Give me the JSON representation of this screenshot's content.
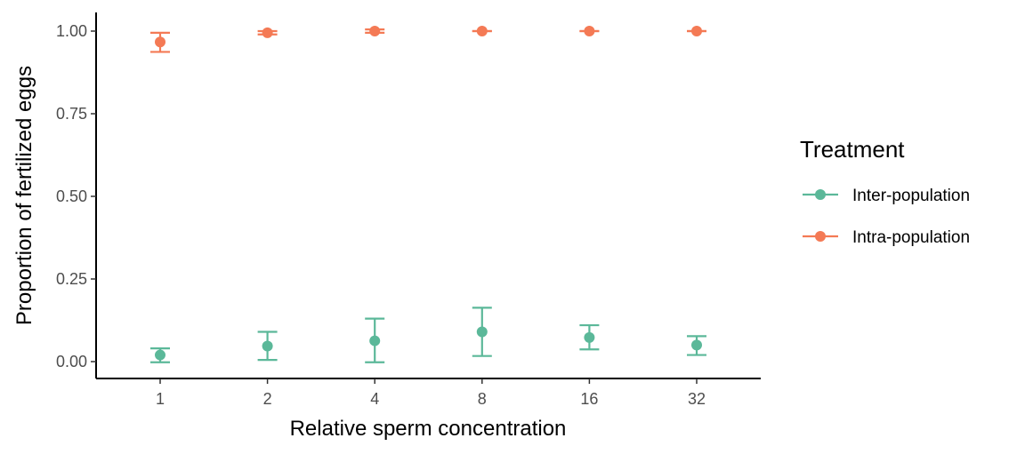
{
  "chart_data": {
    "type": "scatter",
    "xlabel": "Relative sperm concentration",
    "ylabel": "Proportion of fertilized eggs",
    "categories": [
      "1",
      "2",
      "4",
      "8",
      "16",
      "32"
    ],
    "yticks": [
      "0.00",
      "0.25",
      "0.50",
      "0.75",
      "1.00"
    ],
    "ylim": [
      -0.05,
      1.05
    ],
    "grid": false,
    "error_bars": true,
    "legend": {
      "title": "Treatment",
      "position": "right"
    },
    "series": [
      {
        "name": "Inter-population",
        "color": "#5BB899",
        "values": [
          0.02,
          0.047,
          0.063,
          0.09,
          0.073,
          0.05
        ],
        "lower": [
          -0.002,
          0.005,
          -0.002,
          0.017,
          0.037,
          0.02
        ],
        "upper": [
          0.04,
          0.09,
          0.13,
          0.163,
          0.11,
          0.077
        ]
      },
      {
        "name": "Intra-population",
        "color": "#F47A55",
        "values": [
          0.967,
          0.995,
          1.0,
          1.0,
          1.0,
          1.0
        ],
        "lower": [
          0.937,
          0.99,
          0.995,
          1.0,
          1.0,
          1.0
        ],
        "upper": [
          0.995,
          1.0,
          1.005,
          1.0,
          1.0,
          1.0
        ]
      }
    ]
  }
}
